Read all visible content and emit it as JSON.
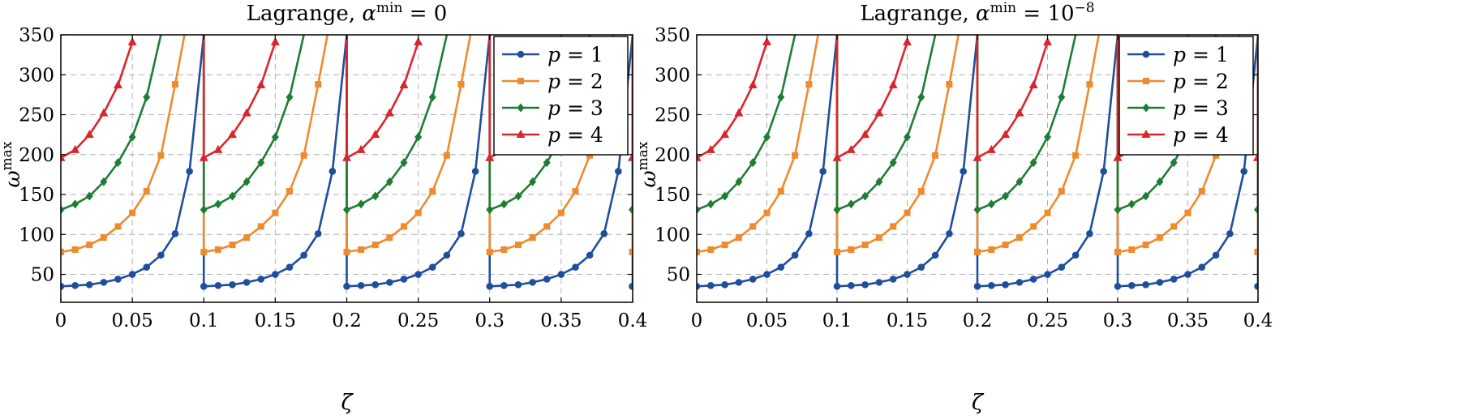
{
  "chart_data": [
    {
      "type": "line",
      "title": "Lagrange, α^min = 0",
      "title_parts": {
        "text": "Lagrange, ",
        "var": "α",
        "sup": "min",
        "rest": " = 0"
      },
      "xlabel": "ζ",
      "ylabel": "ω",
      "ylabel_sup": "max",
      "xlim": [
        0,
        0.4
      ],
      "ylim": [
        15,
        350
      ],
      "xticks": [
        "0",
        "0.05",
        "0.1",
        "0.15",
        "0.2",
        "0.25",
        "0.3",
        "0.35",
        "0.4"
      ],
      "yticks": [
        "50",
        "100",
        "150",
        "200",
        "250",
        "300",
        "350"
      ],
      "grid": true,
      "legend_position": "top-right",
      "period": 0.1,
      "series": [
        {
          "name": "p = 1",
          "label_var": "p",
          "label_val": "1",
          "color": "#1f4e9e",
          "marker": "circle",
          "x": [
            0,
            0.01,
            0.02,
            0.03,
            0.04,
            0.05,
            0.06,
            0.07,
            0.08,
            0.09,
            0.1
          ],
          "y": [
            35,
            36,
            37,
            40,
            44,
            50,
            59,
            74,
            101,
            179,
            350
          ]
        },
        {
          "name": "p = 2",
          "label_var": "p",
          "label_val": "2",
          "color": "#ef8a2f",
          "marker": "square",
          "x": [
            0,
            0.01,
            0.02,
            0.03,
            0.04,
            0.05,
            0.06,
            0.07,
            0.08,
            0.0865
          ],
          "y": [
            78,
            81,
            87,
            96,
            110,
            127,
            154,
            199,
            288,
            350
          ]
        },
        {
          "name": "p = 3",
          "label_var": "p",
          "label_val": "3",
          "color": "#1e7d34",
          "marker": "diamond",
          "x": [
            0,
            0.01,
            0.02,
            0.03,
            0.04,
            0.05,
            0.06,
            0.07
          ],
          "y": [
            131,
            138,
            148,
            166,
            190,
            222,
            272,
            350
          ]
        },
        {
          "name": "p = 4",
          "label_var": "p",
          "label_val": "4",
          "color": "#d9262c",
          "marker": "triangle",
          "x": [
            0,
            0.01,
            0.02,
            0.03,
            0.04,
            0.05
          ],
          "y": [
            196,
            206,
            225,
            252,
            287,
            341
          ]
        }
      ]
    },
    {
      "type": "line",
      "title": "Lagrange, α^min = 10^-8",
      "title_parts": {
        "text": "Lagrange, ",
        "var": "α",
        "sup": "min",
        "rest": " = 10",
        "rest_sup": "−8"
      },
      "xlabel": "ζ",
      "ylabel": "ω",
      "ylabel_sup": "max",
      "xlim": [
        0,
        0.4
      ],
      "ylim": [
        15,
        350
      ],
      "xticks": [
        "0",
        "0.05",
        "0.1",
        "0.15",
        "0.2",
        "0.25",
        "0.3",
        "0.35",
        "0.4"
      ],
      "yticks": [
        "50",
        "100",
        "150",
        "200",
        "250",
        "300",
        "350"
      ],
      "grid": true,
      "legend_position": "top-right",
      "period": 0.1,
      "series": [
        {
          "name": "p = 1",
          "label_var": "p",
          "label_val": "1",
          "color": "#1f4e9e",
          "marker": "circle",
          "x": [
            0,
            0.01,
            0.02,
            0.03,
            0.04,
            0.05,
            0.06,
            0.07,
            0.08,
            0.09,
            0.1
          ],
          "y": [
            35,
            36,
            37,
            40,
            44,
            50,
            59,
            74,
            101,
            179,
            350
          ]
        },
        {
          "name": "p = 2",
          "label_var": "p",
          "label_val": "2",
          "color": "#ef8a2f",
          "marker": "square",
          "x": [
            0,
            0.01,
            0.02,
            0.03,
            0.04,
            0.05,
            0.06,
            0.07,
            0.08,
            0.0865
          ],
          "y": [
            78,
            81,
            87,
            96,
            110,
            127,
            154,
            199,
            288,
            350
          ]
        },
        {
          "name": "p = 3",
          "label_var": "p",
          "label_val": "3",
          "color": "#1e7d34",
          "marker": "diamond",
          "x": [
            0,
            0.01,
            0.02,
            0.03,
            0.04,
            0.05,
            0.06,
            0.07
          ],
          "y": [
            131,
            138,
            148,
            166,
            190,
            222,
            272,
            350
          ]
        },
        {
          "name": "p = 4",
          "label_var": "p",
          "label_val": "4",
          "color": "#d9262c",
          "marker": "triangle",
          "x": [
            0,
            0.01,
            0.02,
            0.03,
            0.04,
            0.05
          ],
          "y": [
            196,
            206,
            225,
            252,
            287,
            341
          ]
        }
      ]
    }
  ]
}
